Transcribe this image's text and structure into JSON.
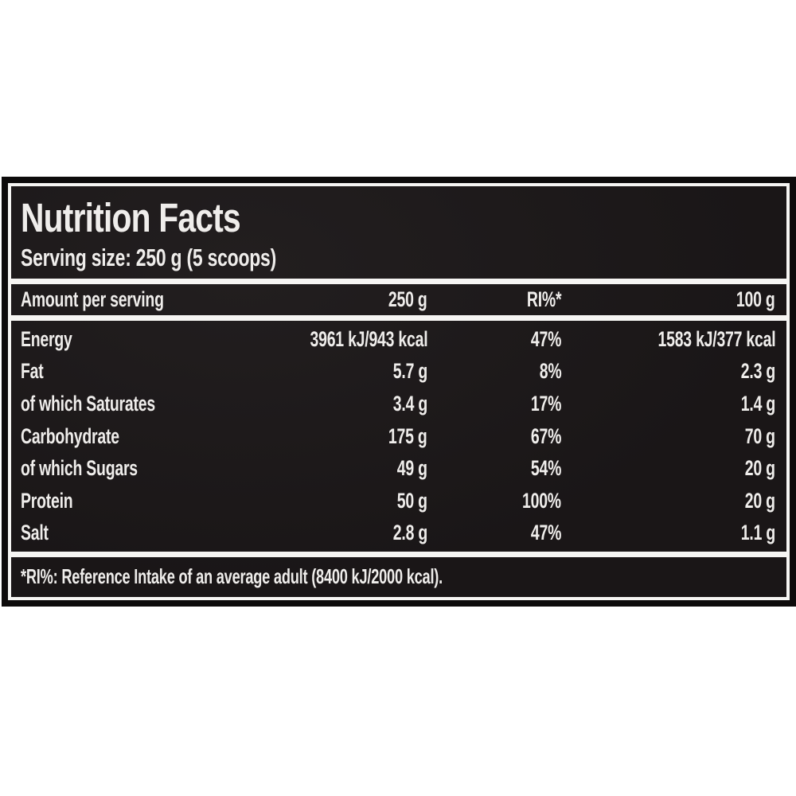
{
  "label": {
    "title": "Nutrition Facts",
    "serving_size": "Serving size: 250 g (5 scoops)",
    "columns": [
      "Amount per serving",
      "250 g",
      "RI%*",
      "100 g"
    ],
    "rows": [
      {
        "name": "Energy",
        "per_serving": "3961 kJ/943 kcal",
        "ri": "47%",
        "per_100g": "1583 kJ/377 kcal"
      },
      {
        "name": "Fat",
        "per_serving": "5.7 g",
        "ri": "8%",
        "per_100g": "2.3 g"
      },
      {
        "name": "of which Saturates",
        "per_serving": "3.4 g",
        "ri": "17%",
        "per_100g": "1.4 g"
      },
      {
        "name": "Carbohydrate",
        "per_serving": "175 g",
        "ri": "67%",
        "per_100g": "70 g"
      },
      {
        "name": "of which Sugars",
        "per_serving": "49 g",
        "ri": "54%",
        "per_100g": "20 g"
      },
      {
        "name": "Protein",
        "per_serving": "50 g",
        "ri": "100%",
        "per_100g": "20 g"
      },
      {
        "name": "Salt",
        "per_serving": "2.8 g",
        "ri": "47%",
        "per_100g": "1.1 g"
      }
    ],
    "footnote": "*RI%: Reference Intake of an average adult (8400 kJ/2000 kcal).",
    "colors": {
      "page_bg": "#ffffff",
      "border_black": "#0d0b0b",
      "panel_bg": "#1b1718",
      "line_white": "#f6f5f3",
      "text": "#efedeb"
    }
  }
}
